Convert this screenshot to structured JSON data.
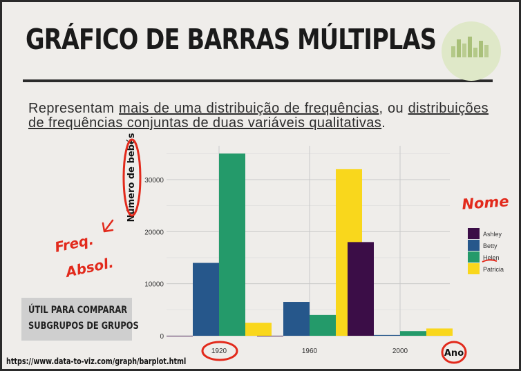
{
  "slide": {
    "title": "GRÁFICO DE BARRAS MÚLTIPLAS",
    "intro_1": "Representam ",
    "intro_2": "mais de uma distribuição de frequências",
    "intro_3": ", ou ",
    "intro_4": "distribuições de frequências conjuntas de duas variáveis qualitativas",
    "intro_5": ".",
    "callout_line1": "ÚTIL PARA COMPARAR",
    "callout_line2": "SUBGRUPOS DE GRUPOS",
    "source": "https://www.data-to-viz.com/graph/barplot.html"
  },
  "annotations": {
    "freq1": "Freq.",
    "freq2": "Absol.",
    "nome": "Nome"
  },
  "colors": {
    "Ashley": "#3b0d47",
    "Betty": "#26578b",
    "Helen": "#249a6a",
    "Patricia": "#f9d71c",
    "annotation": "#e22a1c"
  },
  "chart_data": {
    "type": "bar",
    "categories": [
      "1920",
      "1960",
      "2000"
    ],
    "series": [
      {
        "name": "Ashley",
        "values": [
          0,
          0,
          18000
        ]
      },
      {
        "name": "Betty",
        "values": [
          14000,
          6500,
          150
        ]
      },
      {
        "name": "Helen",
        "values": [
          35000,
          4000,
          900
        ]
      },
      {
        "name": "Patricia",
        "values": [
          2500,
          32000,
          1400
        ]
      }
    ],
    "xlabel": "Ano",
    "ylabel": "Número de bebés",
    "ylim": [
      0,
      36500
    ],
    "yticks": [
      0,
      10000,
      20000,
      30000
    ],
    "ytick_labels": [
      "0",
      "10000",
      "20000",
      "30000"
    ],
    "grid": true,
    "legend_position": "right"
  }
}
